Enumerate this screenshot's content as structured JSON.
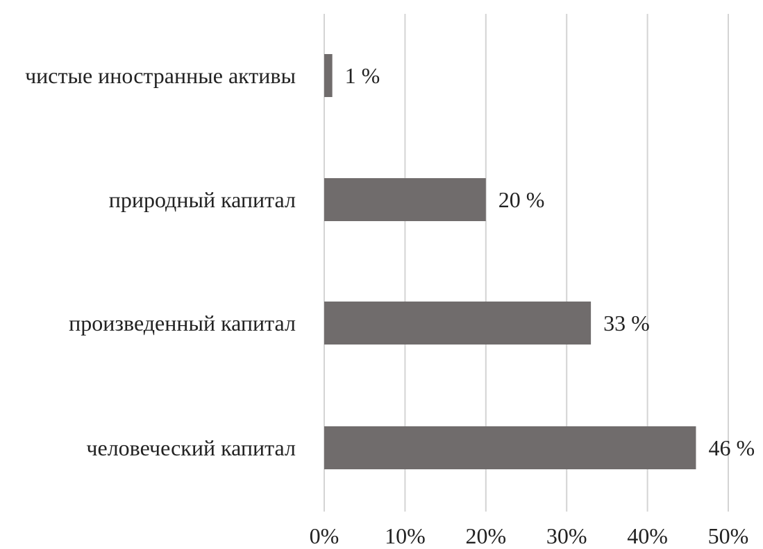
{
  "chart_data": {
    "type": "bar",
    "orientation": "horizontal",
    "categories": [
      "чистые иностранные активы",
      "природный капитал",
      "произведенный капитал",
      "человеческий капитал"
    ],
    "values": [
      1,
      20,
      33,
      46
    ],
    "data_labels": [
      "1 %",
      "20 %",
      "33 %",
      "46 %"
    ],
    "x_ticks": [
      "0%",
      "10%",
      "20%",
      "30%",
      "40%",
      "50%"
    ],
    "xlim": [
      0,
      50
    ],
    "bar_color": "#706c6c",
    "grid": true,
    "legend": "none"
  }
}
